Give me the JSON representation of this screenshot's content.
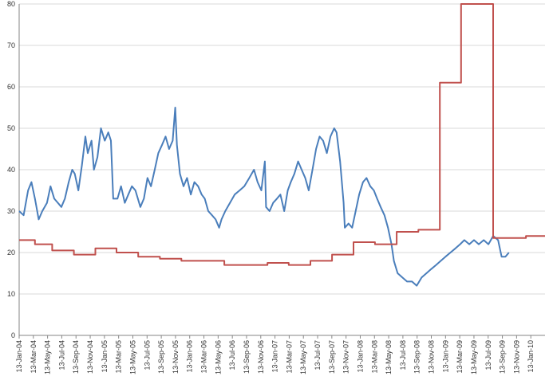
{
  "chart_data": {
    "type": "line",
    "x_tick_labels": [
      "13-Jan-04",
      "13-Mar-04",
      "13-May-04",
      "13-Jul-04",
      "13-Sep-04",
      "13-Nov-04",
      "13-Jan-05",
      "13-Mar-05",
      "13-May-05",
      "13-Jul-05",
      "13-Sep-05",
      "13-Nov-05",
      "13-Jan-06",
      "13-Mar-06",
      "13-May-06",
      "13-Jul-06",
      "13-Sep-06",
      "13-Nov-06",
      "13-Jan-07",
      "13-Mar-07",
      "13-May-07",
      "13-Jul-07",
      "13-Sep-07",
      "13-Nov-07",
      "13-Jan-08",
      "13-Mar-08",
      "13-May-08",
      "13-Jul-08",
      "13-Sep-08",
      "13-Nov-08",
      "13-Jan-09",
      "13-Mar-09",
      "13-May-09",
      "13-Jul-09",
      "13-Sep-09",
      "13-Nov-09",
      "13-Jan-10"
    ],
    "y_ticks": [
      0,
      10,
      20,
      30,
      40,
      50,
      60,
      70,
      80
    ],
    "ylim": [
      0,
      80
    ],
    "xlim": [
      "2004-01-13",
      "2010-02-20"
    ],
    "grid": "horizontal",
    "legend": "none",
    "series": [
      {
        "color": "#4a7ebb",
        "points": [
          [
            "2004-01-13",
            30
          ],
          [
            "2004-02-01",
            29
          ],
          [
            "2004-02-20",
            35
          ],
          [
            "2004-03-05",
            37
          ],
          [
            "2004-03-20",
            33
          ],
          [
            "2004-04-05",
            28
          ],
          [
            "2004-04-20",
            30
          ],
          [
            "2004-05-10",
            32
          ],
          [
            "2004-05-25",
            36
          ],
          [
            "2004-06-10",
            33
          ],
          [
            "2004-06-25",
            32
          ],
          [
            "2004-07-10",
            31
          ],
          [
            "2004-07-25",
            33
          ],
          [
            "2004-08-10",
            37
          ],
          [
            "2004-08-25",
            40
          ],
          [
            "2004-09-05",
            39
          ],
          [
            "2004-09-20",
            35
          ],
          [
            "2004-10-05",
            41
          ],
          [
            "2004-10-20",
            48
          ],
          [
            "2004-10-30",
            44
          ],
          [
            "2004-11-15",
            47
          ],
          [
            "2004-11-25",
            40
          ],
          [
            "2004-12-10",
            43
          ],
          [
            "2004-12-25",
            50
          ],
          [
            "2005-01-10",
            47
          ],
          [
            "2005-01-25",
            49
          ],
          [
            "2005-02-05",
            47
          ],
          [
            "2005-02-15",
            33
          ],
          [
            "2005-03-05",
            33
          ],
          [
            "2005-03-20",
            36
          ],
          [
            "2005-04-05",
            32
          ],
          [
            "2005-04-20",
            34
          ],
          [
            "2005-05-05",
            36
          ],
          [
            "2005-05-20",
            35
          ],
          [
            "2005-06-10",
            31
          ],
          [
            "2005-06-25",
            33
          ],
          [
            "2005-07-10",
            38
          ],
          [
            "2005-07-25",
            36
          ],
          [
            "2005-08-10",
            40
          ],
          [
            "2005-08-25",
            44
          ],
          [
            "2005-09-10",
            46
          ],
          [
            "2005-09-25",
            48
          ],
          [
            "2005-10-10",
            45
          ],
          [
            "2005-10-25",
            47
          ],
          [
            "2005-11-05",
            55
          ],
          [
            "2005-11-12",
            46
          ],
          [
            "2005-11-25",
            39
          ],
          [
            "2005-12-10",
            36
          ],
          [
            "2005-12-25",
            38
          ],
          [
            "2006-01-10",
            34
          ],
          [
            "2006-01-25",
            37
          ],
          [
            "2006-02-10",
            36
          ],
          [
            "2006-02-25",
            34
          ],
          [
            "2006-03-10",
            33
          ],
          [
            "2006-03-25",
            30
          ],
          [
            "2006-04-10",
            29
          ],
          [
            "2006-04-25",
            28
          ],
          [
            "2006-05-10",
            26
          ],
          [
            "2006-05-20",
            28
          ],
          [
            "2006-06-05",
            30
          ],
          [
            "2006-06-25",
            32
          ],
          [
            "2006-07-15",
            34
          ],
          [
            "2006-08-05",
            35
          ],
          [
            "2006-08-25",
            36
          ],
          [
            "2006-09-15",
            38
          ],
          [
            "2006-10-05",
            40
          ],
          [
            "2006-10-20",
            37
          ],
          [
            "2006-11-05",
            35
          ],
          [
            "2006-11-20",
            42
          ],
          [
            "2006-11-25",
            31
          ],
          [
            "2006-12-10",
            30
          ],
          [
            "2006-12-25",
            32
          ],
          [
            "2007-01-10",
            33
          ],
          [
            "2007-01-25",
            34
          ],
          [
            "2007-02-10",
            30
          ],
          [
            "2007-02-25",
            35
          ],
          [
            "2007-03-10",
            37
          ],
          [
            "2007-03-25",
            39
          ],
          [
            "2007-04-10",
            42
          ],
          [
            "2007-04-25",
            40
          ],
          [
            "2007-05-10",
            38
          ],
          [
            "2007-05-25",
            35
          ],
          [
            "2007-06-10",
            40
          ],
          [
            "2007-06-25",
            45
          ],
          [
            "2007-07-10",
            48
          ],
          [
            "2007-07-25",
            47
          ],
          [
            "2007-08-10",
            44
          ],
          [
            "2007-08-25",
            48
          ],
          [
            "2007-09-10",
            50
          ],
          [
            "2007-09-20",
            49
          ],
          [
            "2007-10-05",
            42
          ],
          [
            "2007-10-20",
            32
          ],
          [
            "2007-10-25",
            26
          ],
          [
            "2007-11-10",
            27
          ],
          [
            "2007-11-25",
            26
          ],
          [
            "2007-12-10",
            30
          ],
          [
            "2007-12-25",
            34
          ],
          [
            "2008-01-10",
            37
          ],
          [
            "2008-01-25",
            38
          ],
          [
            "2008-02-10",
            36
          ],
          [
            "2008-02-25",
            35
          ],
          [
            "2008-03-10",
            33
          ],
          [
            "2008-03-25",
            31
          ],
          [
            "2008-04-10",
            29
          ],
          [
            "2008-04-25",
            26
          ],
          [
            "2008-05-10",
            22
          ],
          [
            "2008-05-20",
            18
          ],
          [
            "2008-06-05",
            15
          ],
          [
            "2008-06-25",
            14
          ],
          [
            "2008-07-15",
            13
          ],
          [
            "2008-08-05",
            13
          ],
          [
            "2008-08-25",
            12
          ],
          [
            "2008-09-15",
            14
          ],
          [
            "2008-10-05",
            15
          ],
          [
            "2008-10-25",
            16
          ],
          [
            "2008-11-15",
            17
          ],
          [
            "2008-12-05",
            18
          ],
          [
            "2008-12-25",
            19
          ],
          [
            "2009-01-15",
            20
          ],
          [
            "2009-02-05",
            21
          ],
          [
            "2009-02-25",
            22
          ],
          [
            "2009-03-15",
            23
          ],
          [
            "2009-04-05",
            22
          ],
          [
            "2009-04-25",
            23
          ],
          [
            "2009-05-15",
            22
          ],
          [
            "2009-06-05",
            23
          ],
          [
            "2009-06-25",
            22
          ],
          [
            "2009-07-15",
            24
          ],
          [
            "2009-08-05",
            23
          ],
          [
            "2009-08-20",
            19
          ],
          [
            "2009-09-05",
            19
          ],
          [
            "2009-09-20",
            20
          ]
        ]
      },
      {
        "color": "#c0504d",
        "step": true,
        "points": [
          [
            "2004-01-13",
            23
          ],
          [
            "2004-03-20",
            22
          ],
          [
            "2004-06-01",
            20.5
          ],
          [
            "2004-09-01",
            19.5
          ],
          [
            "2004-12-01",
            21
          ],
          [
            "2005-03-01",
            20
          ],
          [
            "2005-06-01",
            19
          ],
          [
            "2005-09-01",
            18.5
          ],
          [
            "2005-12-01",
            18
          ],
          [
            "2006-06-01",
            17
          ],
          [
            "2006-12-01",
            17.5
          ],
          [
            "2007-03-01",
            17
          ],
          [
            "2007-06-01",
            18
          ],
          [
            "2007-09-01",
            19.5
          ],
          [
            "2007-12-01",
            22.5
          ],
          [
            "2008-03-01",
            22
          ],
          [
            "2008-06-01",
            25
          ],
          [
            "2008-09-01",
            25.5
          ],
          [
            "2008-12-01",
            61
          ],
          [
            "2009-03-01",
            80
          ],
          [
            "2009-07-15",
            23.5
          ],
          [
            "2009-12-01",
            24
          ],
          [
            "2010-02-20",
            24
          ]
        ]
      }
    ]
  }
}
